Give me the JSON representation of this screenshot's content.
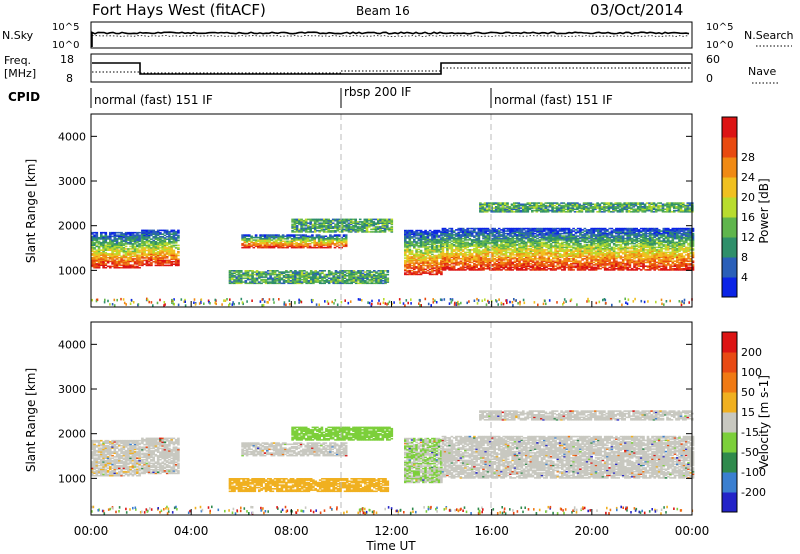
{
  "header": {
    "station": "Fort Hays West (fitACF)",
    "beam": "Beam 16",
    "date": "03/Oct/2014"
  },
  "nsky_panel": {
    "left_label": "N.Sky",
    "left_ticks": [
      "10^5",
      "10^0"
    ],
    "right_label": "N.Search",
    "right_ticks": [
      "10^5",
      "10^0"
    ]
  },
  "freq_panel": {
    "left_label_1": "Freq.",
    "left_label_2": "[MHz]",
    "left_ticks": [
      "18",
      "8"
    ],
    "right_label": "Nave",
    "right_ticks": [
      "60",
      "0"
    ]
  },
  "cpid": {
    "label": "CPID",
    "segments": [
      {
        "label": "normal (fast) 151 IF",
        "start": 0,
        "end": 10
      },
      {
        "label": "rbsp 200 IF",
        "start": 10,
        "end": 16
      },
      {
        "label": "normal (fast) 151 IF",
        "start": 16,
        "end": 24
      }
    ]
  },
  "x_axis": {
    "label": "Time UT",
    "ticks": [
      "00:00",
      "04:00",
      "08:00",
      "12:00",
      "16:00",
      "20:00",
      "00:00"
    ]
  },
  "y_axis": {
    "label": "Slant Range [km]",
    "ticks": [
      "1000",
      "2000",
      "3000",
      "4000"
    ]
  },
  "power_colorbar": {
    "label": "Power [dB]",
    "ticks": [
      "4",
      "8",
      "12",
      "16",
      "20",
      "24",
      "28"
    ],
    "colors": [
      "#0b24e6",
      "#2a5fb8",
      "#2f8f6a",
      "#5fb54c",
      "#b8dc2e",
      "#f0c020",
      "#f08a14",
      "#e84a10",
      "#dc1414"
    ]
  },
  "velocity_colorbar": {
    "label": "Velocity [m s-1]",
    "ticks": [
      "200",
      "100",
      "50",
      "15",
      "-15",
      "-50",
      "-100",
      "-200"
    ],
    "colors": [
      "#2323c8",
      "#3a7fd0",
      "#2f8a4c",
      "#7ccf3a",
      "#c8c8c0",
      "#f0b020",
      "#f07a14",
      "#e84a14",
      "#dc1414"
    ]
  },
  "chart_data": [
    {
      "type": "heatmap",
      "panel": "power",
      "x_range": [
        0,
        24
      ],
      "ylim": [
        180,
        4500
      ],
      "xlabel": "Time UT",
      "ylabel": "Slant Range [km]",
      "colorbar_label": "Power [dB]",
      "bands": [
        {
          "t0": 0.0,
          "t1": 1.9,
          "r0": 1050,
          "r1": 1850
        },
        {
          "t0": 2.0,
          "t1": 3.5,
          "r0": 1100,
          "r1": 1900
        },
        {
          "t0": 6.0,
          "t1": 10.2,
          "r0": 1500,
          "r1": 1800
        },
        {
          "t0": 8.0,
          "t1": 12.0,
          "r0": 1850,
          "r1": 2150
        },
        {
          "t0": 5.5,
          "t1": 11.8,
          "r0": 700,
          "r1": 1000
        },
        {
          "t0": 12.5,
          "t1": 14.0,
          "r0": 900,
          "r1": 1900
        },
        {
          "t0": 14.0,
          "t1": 24.0,
          "r0": 1000,
          "r1": 1950
        },
        {
          "t0": 15.5,
          "t1": 24.0,
          "r0": 2300,
          "r1": 2500
        }
      ]
    },
    {
      "type": "heatmap",
      "panel": "velocity",
      "x_range": [
        0,
        24
      ],
      "ylim": [
        180,
        4500
      ],
      "xlabel": "Time UT",
      "ylabel": "Slant Range [km]",
      "colorbar_label": "Velocity [m s-1]",
      "bands": [
        {
          "t0": 0.0,
          "t1": 1.9,
          "r0": 1050,
          "r1": 1850
        },
        {
          "t0": 2.0,
          "t1": 3.5,
          "r0": 1100,
          "r1": 1900
        },
        {
          "t0": 6.0,
          "t1": 10.2,
          "r0": 1500,
          "r1": 1800
        },
        {
          "t0": 8.0,
          "t1": 12.0,
          "r0": 1850,
          "r1": 2150
        },
        {
          "t0": 5.5,
          "t1": 11.8,
          "r0": 700,
          "r1": 1000
        },
        {
          "t0": 12.5,
          "t1": 14.0,
          "r0": 900,
          "r1": 1900
        },
        {
          "t0": 14.0,
          "t1": 24.0,
          "r0": 1000,
          "r1": 1950
        },
        {
          "t0": 15.5,
          "t1": 24.0,
          "r0": 2300,
          "r1": 2500
        }
      ]
    }
  ]
}
